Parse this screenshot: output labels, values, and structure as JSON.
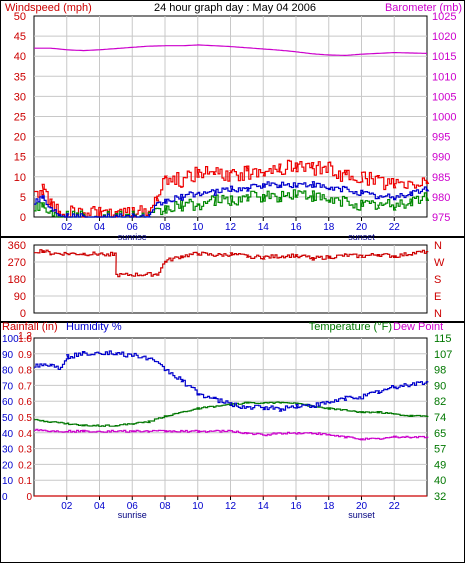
{
  "colors": {
    "wind": "#cc0000",
    "wind_gust": "#ee0000",
    "wind_avg": "#0000cc",
    "wind_low": "#008800",
    "baro": "#cc00cc",
    "dir": "#cc0000",
    "rain": "#cc0000",
    "humidity": "#0000cc",
    "temperature": "#007700",
    "dewpoint": "#cc00cc",
    "grid": "#c8c8c8",
    "axis": "#000000"
  },
  "chart_data": [
    {
      "type": "line",
      "title": "24 hour graph day : May 04 2006",
      "left_axis_label": "Windspeed (mph)",
      "right_axis_label": "Barometer (mb)",
      "left_ticks": [
        "0",
        "5",
        "10",
        "15",
        "20",
        "25",
        "30",
        "35",
        "40",
        "45",
        "50"
      ],
      "left_range": [
        0,
        50
      ],
      "right_ticks": [
        "975",
        "980",
        "985",
        "990",
        "995",
        "1000",
        "1005",
        "1010",
        "1015",
        "1020",
        "1025"
      ],
      "right_range": [
        975,
        1025
      ],
      "x_ticks": [
        "02",
        "04",
        "06",
        "08",
        "10",
        "12",
        "14",
        "16",
        "18",
        "20",
        "22"
      ],
      "x_tick_hours": [
        2,
        4,
        6,
        8,
        10,
        12,
        14,
        16,
        18,
        20,
        22
      ],
      "x_range": [
        0,
        24
      ],
      "sunrise_label": "sunrise",
      "sunrise_hour": 6,
      "sunset_label": "sunset",
      "sunset_hour": 20,
      "grid": true,
      "series_points": {
        "barometer_mb": [
          [
            0,
            1017.0
          ],
          [
            1,
            1017.0
          ],
          [
            2,
            1016.6
          ],
          [
            3,
            1016.4
          ],
          [
            4,
            1016.6
          ],
          [
            5,
            1016.9
          ],
          [
            6,
            1017.2
          ],
          [
            7,
            1017.5
          ],
          [
            8,
            1017.6
          ],
          [
            9,
            1017.6
          ],
          [
            10,
            1017.8
          ],
          [
            11,
            1017.6
          ],
          [
            12,
            1017.4
          ],
          [
            13,
            1017.1
          ],
          [
            14,
            1016.8
          ],
          [
            15,
            1016.5
          ],
          [
            16,
            1016.1
          ],
          [
            17,
            1015.6
          ],
          [
            18,
            1015.3
          ],
          [
            19,
            1015.2
          ],
          [
            20,
            1015.5
          ],
          [
            21,
            1015.7
          ],
          [
            22,
            1015.9
          ],
          [
            23,
            1015.8
          ],
          [
            24,
            1015.7
          ]
        ],
        "wind_gust_mph": [
          [
            0,
            5
          ],
          [
            0.5,
            7
          ],
          [
            1,
            3
          ],
          [
            1.5,
            1
          ],
          [
            2,
            1
          ],
          [
            3,
            1
          ],
          [
            4,
            1
          ],
          [
            5,
            0
          ],
          [
            6,
            1
          ],
          [
            7,
            1
          ],
          [
            7.5,
            6
          ],
          [
            8,
            10
          ],
          [
            9,
            9
          ],
          [
            10,
            11
          ],
          [
            11,
            11
          ],
          [
            12,
            10
          ],
          [
            13,
            11
          ],
          [
            14,
            12
          ],
          [
            15,
            12
          ],
          [
            16,
            13
          ],
          [
            17,
            12
          ],
          [
            18,
            12
          ],
          [
            19,
            10
          ],
          [
            20,
            10
          ],
          [
            21,
            9
          ],
          [
            22,
            8
          ],
          [
            23,
            8
          ],
          [
            24,
            9
          ]
        ],
        "wind_avg_mph": [
          [
            0,
            4
          ],
          [
            0.5,
            5
          ],
          [
            1,
            2
          ],
          [
            1.5,
            1
          ],
          [
            2,
            0
          ],
          [
            3,
            0
          ],
          [
            4,
            0
          ],
          [
            5,
            0
          ],
          [
            6,
            0
          ],
          [
            7,
            0
          ],
          [
            7.5,
            3
          ],
          [
            8,
            4
          ],
          [
            9,
            5
          ],
          [
            10,
            6
          ],
          [
            11,
            6
          ],
          [
            12,
            7
          ],
          [
            13,
            7
          ],
          [
            14,
            8
          ],
          [
            15,
            8
          ],
          [
            16,
            8
          ],
          [
            17,
            8
          ],
          [
            18,
            7
          ],
          [
            19,
            7
          ],
          [
            20,
            6
          ],
          [
            21,
            5
          ],
          [
            22,
            5
          ],
          [
            23,
            6
          ],
          [
            24,
            7
          ]
        ],
        "wind_low_mph": [
          [
            0,
            3
          ],
          [
            0.5,
            3
          ],
          [
            1,
            1
          ],
          [
            1.5,
            0
          ],
          [
            2,
            0
          ],
          [
            3,
            0
          ],
          [
            4,
            0
          ],
          [
            5,
            0
          ],
          [
            6,
            0
          ],
          [
            7,
            0
          ],
          [
            7.5,
            1
          ],
          [
            8,
            2
          ],
          [
            9,
            3
          ],
          [
            10,
            3
          ],
          [
            11,
            4
          ],
          [
            12,
            4
          ],
          [
            13,
            5
          ],
          [
            14,
            5
          ],
          [
            15,
            5
          ],
          [
            16,
            6
          ],
          [
            17,
            5
          ],
          [
            18,
            4
          ],
          [
            19,
            4
          ],
          [
            20,
            3
          ],
          [
            21,
            3
          ],
          [
            22,
            3
          ],
          [
            23,
            4
          ],
          [
            24,
            5
          ]
        ]
      }
    },
    {
      "type": "line",
      "ylabels_left": [
        "360",
        "270",
        "180",
        "90",
        "0"
      ],
      "ylabels_right": [
        "N",
        "W",
        "S",
        "E",
        "N"
      ],
      "y_range": [
        0,
        360
      ],
      "grid": true,
      "series_points": {
        "wind_direction_deg": [
          [
            0,
            325
          ],
          [
            0.5,
            330
          ],
          [
            1,
            315
          ],
          [
            3,
            313
          ],
          [
            4.9,
            312
          ],
          [
            5,
            200
          ],
          [
            7.5,
            205
          ],
          [
            8,
            275
          ],
          [
            9,
            300
          ],
          [
            10,
            315
          ],
          [
            11,
            305
          ],
          [
            12,
            310
          ],
          [
            13,
            300
          ],
          [
            14,
            295
          ],
          [
            15,
            300
          ],
          [
            16,
            305
          ],
          [
            17,
            290
          ],
          [
            18,
            295
          ],
          [
            19,
            305
          ],
          [
            20,
            300
          ],
          [
            21,
            310
          ],
          [
            22,
            300
          ],
          [
            23,
            315
          ],
          [
            24,
            325
          ]
        ]
      }
    },
    {
      "type": "line",
      "left_axis_label": "Rainfall (in)",
      "humidity_label": "Humidity %",
      "right_axis_label": "Temperature (°F)",
      "dewpoint_label": "Dew Point",
      "rain_ticks": [
        "0",
        "0.1",
        "0.2",
        "0.3",
        "0.4",
        "0.5",
        "0.6",
        "0.7",
        "0.8",
        "0.9",
        "1.0",
        "1.2"
      ],
      "humidity_ticks": [
        "0",
        "10",
        "20",
        "30",
        "40",
        "50",
        "60",
        "70",
        "80",
        "90",
        "100"
      ],
      "temp_ticks": [
        "32",
        "40",
        "49",
        "57",
        "65",
        "74",
        "82",
        "90",
        "98",
        "107",
        "115"
      ],
      "temp_range": [
        32,
        115
      ],
      "humidity_range": [
        0,
        100
      ],
      "grid": true,
      "series_points": {
        "humidity_pct": [
          [
            0,
            83
          ],
          [
            1,
            83
          ],
          [
            1.5,
            81
          ],
          [
            2,
            88
          ],
          [
            3,
            90
          ],
          [
            4,
            91
          ],
          [
            5,
            90
          ],
          [
            6,
            89
          ],
          [
            7,
            87
          ],
          [
            8,
            80
          ],
          [
            9,
            73
          ],
          [
            10,
            65
          ],
          [
            11,
            61
          ],
          [
            12,
            58
          ],
          [
            13,
            56
          ],
          [
            14,
            56
          ],
          [
            15,
            55
          ],
          [
            16,
            57
          ],
          [
            17,
            57
          ],
          [
            18,
            59
          ],
          [
            19,
            62
          ],
          [
            20,
            63
          ],
          [
            21,
            66
          ],
          [
            22,
            69
          ],
          [
            23,
            71
          ],
          [
            24,
            72
          ]
        ],
        "temperature_f": [
          [
            0,
            72
          ],
          [
            1,
            71
          ],
          [
            2,
            70
          ],
          [
            3,
            69
          ],
          [
            4,
            69
          ],
          [
            5,
            69
          ],
          [
            6,
            70
          ],
          [
            7,
            71
          ],
          [
            8,
            74
          ],
          [
            9,
            76
          ],
          [
            10,
            78
          ],
          [
            11,
            79
          ],
          [
            12,
            80
          ],
          [
            13,
            81
          ],
          [
            14,
            81
          ],
          [
            15,
            81
          ],
          [
            16,
            81
          ],
          [
            17,
            79
          ],
          [
            18,
            78
          ],
          [
            19,
            77
          ],
          [
            20,
            76
          ],
          [
            21,
            76
          ],
          [
            22,
            75
          ],
          [
            23,
            74
          ],
          [
            24,
            74
          ]
        ],
        "dewpoint_f": [
          [
            0,
            67
          ],
          [
            1,
            66
          ],
          [
            2,
            66
          ],
          [
            3,
            66
          ],
          [
            4,
            66
          ],
          [
            5,
            66
          ],
          [
            6,
            66
          ],
          [
            7,
            66
          ],
          [
            8,
            66
          ],
          [
            9,
            66
          ],
          [
            10,
            66
          ],
          [
            11,
            66
          ],
          [
            12,
            66
          ],
          [
            13,
            65
          ],
          [
            14,
            64
          ],
          [
            15,
            65
          ],
          [
            16,
            65
          ],
          [
            17,
            65
          ],
          [
            18,
            64
          ],
          [
            19,
            63
          ],
          [
            20,
            62
          ],
          [
            21,
            62
          ],
          [
            22,
            63
          ],
          [
            23,
            63
          ],
          [
            24,
            63
          ]
        ],
        "rainfall_in": [
          [
            0,
            0
          ],
          [
            24,
            0
          ]
        ]
      }
    }
  ]
}
